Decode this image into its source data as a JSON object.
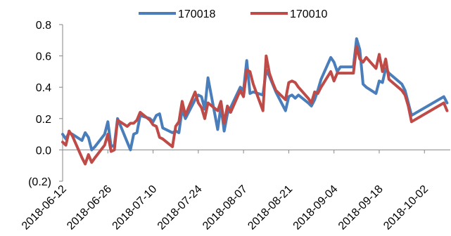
{
  "chart_data": {
    "type": "line",
    "title": "",
    "xlabel": "",
    "ylabel": "",
    "legend_position": "top-center",
    "grid": false,
    "ylim": [
      -0.2,
      0.8
    ],
    "y_ticks": [
      {
        "value": 0.8,
        "label": "0.8"
      },
      {
        "value": 0.6,
        "label": "0.6"
      },
      {
        "value": 0.4,
        "label": "0.4"
      },
      {
        "value": 0.2,
        "label": "0.2"
      },
      {
        "value": 0.0,
        "label": "0.0"
      },
      {
        "value": -0.2,
        "label": "(0.2)",
        "color": "#FF0000"
      }
    ],
    "xlim": [
      "2018-06-12",
      "2018-10-10"
    ],
    "x_ticks": [
      "2018-06-12",
      "2018-06-26",
      "2018-07-10",
      "2018-07-24",
      "2018-08-07",
      "2018-08-21",
      "2018-09-04",
      "2018-09-18",
      "2018-10-02"
    ],
    "series": [
      {
        "name": "170018",
        "color": "#4A7EBB",
        "points": [
          [
            "2018-06-12",
            0.1
          ],
          [
            "2018-06-13",
            0.07
          ],
          [
            "2018-06-14",
            0.11
          ],
          [
            "2018-06-15",
            0.1
          ],
          [
            "2018-06-18",
            0.06
          ],
          [
            "2018-06-19",
            0.11
          ],
          [
            "2018-06-20",
            0.08
          ],
          [
            "2018-06-21",
            0.0
          ],
          [
            "2018-06-22",
            0.02
          ],
          [
            "2018-06-25",
            0.1
          ],
          [
            "2018-06-26",
            0.18
          ],
          [
            "2018-06-27",
            0.02
          ],
          [
            "2018-06-28",
            0.03
          ],
          [
            "2018-06-29",
            0.2
          ],
          [
            "2018-07-02",
            0.05
          ],
          [
            "2018-07-03",
            0.0
          ],
          [
            "2018-07-04",
            0.1
          ],
          [
            "2018-07-05",
            0.11
          ],
          [
            "2018-07-06",
            0.22
          ],
          [
            "2018-07-09",
            0.2
          ],
          [
            "2018-07-10",
            0.18
          ],
          [
            "2018-07-11",
            0.22
          ],
          [
            "2018-07-12",
            0.23
          ],
          [
            "2018-07-13",
            0.14
          ],
          [
            "2018-07-16",
            0.11
          ],
          [
            "2018-07-17",
            0.12
          ],
          [
            "2018-07-18",
            0.11
          ],
          [
            "2018-07-19",
            0.26
          ],
          [
            "2018-07-20",
            0.2
          ],
          [
            "2018-07-23",
            0.32
          ],
          [
            "2018-07-24",
            0.35
          ],
          [
            "2018-07-25",
            0.34
          ],
          [
            "2018-07-26",
            0.26
          ],
          [
            "2018-07-27",
            0.46
          ],
          [
            "2018-07-30",
            0.13
          ],
          [
            "2018-07-31",
            0.28
          ],
          [
            "2018-08-01",
            0.12
          ],
          [
            "2018-08-02",
            0.23
          ],
          [
            "2018-08-03",
            0.27
          ],
          [
            "2018-08-06",
            0.4
          ],
          [
            "2018-08-07",
            0.38
          ],
          [
            "2018-08-08",
            0.57
          ],
          [
            "2018-08-09",
            0.36
          ],
          [
            "2018-08-10",
            0.37
          ],
          [
            "2018-08-13",
            0.35
          ],
          [
            "2018-08-14",
            0.51
          ],
          [
            "2018-08-15",
            0.47
          ],
          [
            "2018-08-16",
            0.42
          ],
          [
            "2018-08-17",
            0.37
          ],
          [
            "2018-08-20",
            0.25
          ],
          [
            "2018-08-21",
            0.34
          ],
          [
            "2018-08-22",
            0.35
          ],
          [
            "2018-08-23",
            0.33
          ],
          [
            "2018-08-24",
            0.35
          ],
          [
            "2018-08-27",
            0.3
          ],
          [
            "2018-08-28",
            0.28
          ],
          [
            "2018-08-29",
            0.32
          ],
          [
            "2018-08-30",
            0.38
          ],
          [
            "2018-08-31",
            0.45
          ],
          [
            "2018-09-03",
            0.59
          ],
          [
            "2018-09-04",
            0.56
          ],
          [
            "2018-09-05",
            0.5
          ],
          [
            "2018-09-06",
            0.53
          ],
          [
            "2018-09-07",
            0.53
          ],
          [
            "2018-09-10",
            0.53
          ],
          [
            "2018-09-11",
            0.71
          ],
          [
            "2018-09-12",
            0.64
          ],
          [
            "2018-09-13",
            0.42
          ],
          [
            "2018-09-14",
            0.4
          ],
          [
            "2018-09-17",
            0.36
          ],
          [
            "2018-09-18",
            0.44
          ],
          [
            "2018-09-19",
            0.43
          ],
          [
            "2018-09-20",
            0.52
          ],
          [
            "2018-09-21",
            0.49
          ],
          [
            "2018-09-25",
            0.42
          ],
          [
            "2018-09-26",
            0.38
          ],
          [
            "2018-09-27",
            0.3
          ],
          [
            "2018-09-28",
            0.22
          ],
          [
            "2018-10-08",
            0.34
          ],
          [
            "2018-10-09",
            0.3
          ]
        ]
      },
      {
        "name": "170010",
        "color": "#BE4B48",
        "points": [
          [
            "2018-06-12",
            0.05
          ],
          [
            "2018-06-13",
            0.03
          ],
          [
            "2018-06-14",
            0.12
          ],
          [
            "2018-06-15",
            0.09
          ],
          [
            "2018-06-18",
            -0.05
          ],
          [
            "2018-06-19",
            -0.09
          ],
          [
            "2018-06-20",
            -0.03
          ],
          [
            "2018-06-21",
            -0.08
          ],
          [
            "2018-06-22",
            -0.05
          ],
          [
            "2018-06-25",
            0.03
          ],
          [
            "2018-06-26",
            0.1
          ],
          [
            "2018-06-27",
            -0.01
          ],
          [
            "2018-06-28",
            0.0
          ],
          [
            "2018-06-29",
            0.19
          ],
          [
            "2018-07-02",
            0.15
          ],
          [
            "2018-07-03",
            0.17
          ],
          [
            "2018-07-04",
            0.17
          ],
          [
            "2018-07-05",
            0.19
          ],
          [
            "2018-07-06",
            0.24
          ],
          [
            "2018-07-09",
            0.19
          ],
          [
            "2018-07-10",
            0.16
          ],
          [
            "2018-07-11",
            0.15
          ],
          [
            "2018-07-12",
            0.08
          ],
          [
            "2018-07-13",
            0.07
          ],
          [
            "2018-07-16",
            0.02
          ],
          [
            "2018-07-17",
            0.15
          ],
          [
            "2018-07-18",
            0.18
          ],
          [
            "2018-07-19",
            0.31
          ],
          [
            "2018-07-20",
            0.22
          ],
          [
            "2018-07-23",
            0.37
          ],
          [
            "2018-07-24",
            0.3
          ],
          [
            "2018-07-25",
            0.27
          ],
          [
            "2018-07-26",
            0.2
          ],
          [
            "2018-07-27",
            0.3
          ],
          [
            "2018-07-30",
            0.25
          ],
          [
            "2018-07-31",
            0.31
          ],
          [
            "2018-08-01",
            0.17
          ],
          [
            "2018-08-02",
            0.28
          ],
          [
            "2018-08-03",
            0.24
          ],
          [
            "2018-08-06",
            0.38
          ],
          [
            "2018-08-07",
            0.34
          ],
          [
            "2018-08-08",
            0.51
          ],
          [
            "2018-08-09",
            0.5
          ],
          [
            "2018-08-10",
            0.42
          ],
          [
            "2018-08-13",
            0.25
          ],
          [
            "2018-08-14",
            0.6
          ],
          [
            "2018-08-15",
            0.49
          ],
          [
            "2018-08-16",
            0.43
          ],
          [
            "2018-08-17",
            0.38
          ],
          [
            "2018-08-20",
            0.32
          ],
          [
            "2018-08-21",
            0.43
          ],
          [
            "2018-08-22",
            0.44
          ],
          [
            "2018-08-23",
            0.43
          ],
          [
            "2018-08-24",
            0.4
          ],
          [
            "2018-08-27",
            0.33
          ],
          [
            "2018-08-28",
            0.3
          ],
          [
            "2018-08-29",
            0.37
          ],
          [
            "2018-08-30",
            0.36
          ],
          [
            "2018-08-31",
            0.4
          ],
          [
            "2018-09-03",
            0.5
          ],
          [
            "2018-09-04",
            0.44
          ],
          [
            "2018-09-05",
            0.49
          ],
          [
            "2018-09-06",
            0.49
          ],
          [
            "2018-09-07",
            0.49
          ],
          [
            "2018-09-10",
            0.49
          ],
          [
            "2018-09-11",
            0.66
          ],
          [
            "2018-09-12",
            0.58
          ],
          [
            "2018-09-13",
            0.56
          ],
          [
            "2018-09-14",
            0.59
          ],
          [
            "2018-09-17",
            0.52
          ],
          [
            "2018-09-18",
            0.61
          ],
          [
            "2018-09-19",
            0.5
          ],
          [
            "2018-09-20",
            0.58
          ],
          [
            "2018-09-21",
            0.45
          ],
          [
            "2018-09-25",
            0.38
          ],
          [
            "2018-09-26",
            0.35
          ],
          [
            "2018-09-27",
            0.28
          ],
          [
            "2018-09-28",
            0.18
          ],
          [
            "2018-10-08",
            0.3
          ],
          [
            "2018-10-09",
            0.25
          ]
        ]
      }
    ]
  }
}
